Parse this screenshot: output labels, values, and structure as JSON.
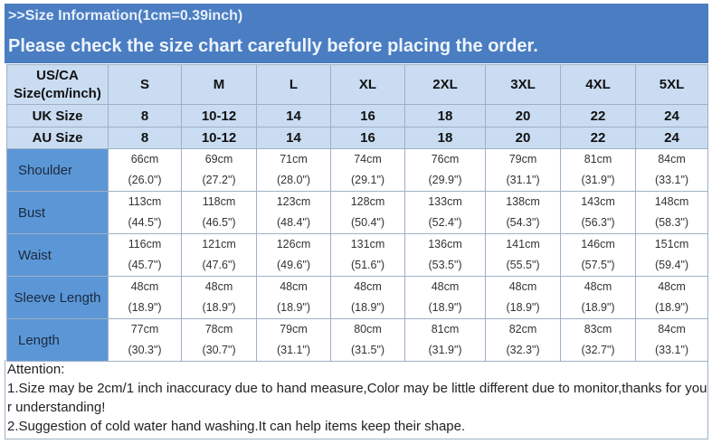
{
  "banner": {
    "line1": ">>Size Information(1cm=0.39inch)",
    "line2": "Please check the size chart carefully before placing the order."
  },
  "colors": {
    "banner": "#4a7dc2",
    "header_cells": "#c9dcf1",
    "label_column": "#5b97d6"
  },
  "table": {
    "header_rows": [
      {
        "label": "US/CA Size(cm/inch)",
        "values": [
          "S",
          "M",
          "L",
          "XL",
          "2XL",
          "3XL",
          "4XL",
          "5XL"
        ]
      },
      {
        "label": "UK Size",
        "values": [
          "8",
          "10-12",
          "14",
          "16",
          "18",
          "20",
          "22",
          "24"
        ]
      },
      {
        "label": "AU Size",
        "values": [
          "8",
          "10-12",
          "14",
          "16",
          "18",
          "20",
          "22",
          "24"
        ]
      }
    ],
    "measure_rows": [
      {
        "label": "Shoulder",
        "cm": [
          "66cm",
          "69cm",
          "71cm",
          "74cm",
          "76cm",
          "79cm",
          "81cm",
          "84cm"
        ],
        "inch": [
          "(26.0\")",
          "(27.2\")",
          "(28.0\")",
          "(29.1\")",
          "(29.9\")",
          "(31.1\")",
          "(31.9\")",
          "(33.1\")"
        ]
      },
      {
        "label": "Bust",
        "cm": [
          "113cm",
          "118cm",
          "123cm",
          "128cm",
          "133cm",
          "138cm",
          "143cm",
          "148cm"
        ],
        "inch": [
          "(44.5\")",
          "(46.5\")",
          "(48.4\")",
          "(50.4\")",
          "(52.4\")",
          "(54.3\")",
          "(56.3\")",
          "(58.3\")"
        ]
      },
      {
        "label": "Waist",
        "cm": [
          "116cm",
          "121cm",
          "126cm",
          "131cm",
          "136cm",
          "141cm",
          "146cm",
          "151cm"
        ],
        "inch": [
          "(45.7\")",
          "(47.6\")",
          "(49.6\")",
          "(51.6\")",
          "(53.5\")",
          "(55.5\")",
          "(57.5\")",
          "(59.4\")"
        ]
      },
      {
        "label": "Sleeve Length",
        "cm": [
          "48cm",
          "48cm",
          "48cm",
          "48cm",
          "48cm",
          "48cm",
          "48cm",
          "48cm"
        ],
        "inch": [
          "(18.9\")",
          "(18.9\")",
          "(18.9\")",
          "(18.9\")",
          "(18.9\")",
          "(18.9\")",
          "(18.9\")",
          "(18.9\")"
        ]
      },
      {
        "label": "Length",
        "cm": [
          "77cm",
          "78cm",
          "79cm",
          "80cm",
          "81cm",
          "82cm",
          "83cm",
          "84cm"
        ],
        "inch": [
          "(30.3\")",
          "(30.7\")",
          "(31.1\")",
          "(31.5\")",
          "(31.9\")",
          "(32.3\")",
          "(32.7\")",
          "(33.1\")"
        ]
      }
    ]
  },
  "attention": {
    "title": "Attention:",
    "note1": "1.Size may be 2cm/1 inch inaccuracy due to hand measure,Color may be little different due to monitor,thanks for your understanding!",
    "note2": "2.Suggestion of cold water hand washing.It can help items keep their shape."
  }
}
